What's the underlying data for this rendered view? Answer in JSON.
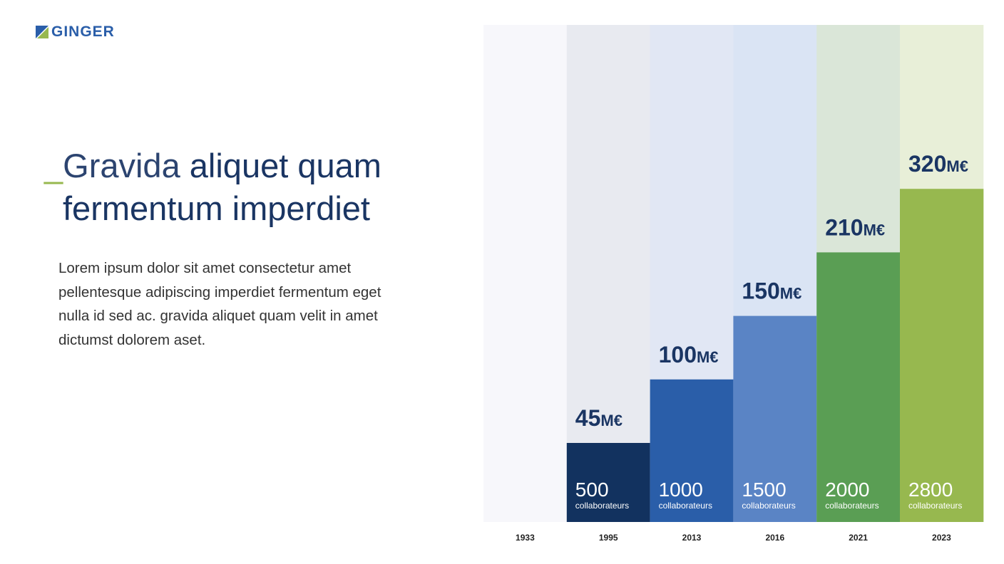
{
  "logo": {
    "text": "GINGER",
    "colors": [
      "#2a5ea9",
      "#97b84f"
    ]
  },
  "heading": {
    "dash": "_",
    "light": "Gravida ",
    "bold": "aliquet quam",
    "line2": "fermentum imperdiet"
  },
  "body": "Lorem ipsum dolor sit amet consectetur amet pellentesque adipiscing imperdiet fermentum eget nulla id sed ac. gravida aliquet quam velit in amet dictumst dolorem aset.",
  "chart_data": {
    "type": "bar",
    "categories": [
      "1933",
      "1995",
      "2013",
      "2016",
      "2021",
      "2023"
    ],
    "series": [
      {
        "values": [
          null,
          45,
          100,
          150,
          210,
          320
        ],
        "unit": "M€"
      },
      {
        "values": [
          null,
          500,
          1000,
          1500,
          2000,
          2800
        ],
        "unit": "collaborateurs"
      }
    ],
    "bar_colors": [
      "#f7f7fb",
      "#12325f",
      "#2a5ea9",
      "#5a84c5",
      "#5a9e54",
      "#97b84f"
    ],
    "background_colors": [
      "#f7f7fb",
      "#e8eaf0",
      "#e1e7f4",
      "#dae4f4",
      "#dae6d8",
      "#e8efd8"
    ],
    "grid": false
  }
}
